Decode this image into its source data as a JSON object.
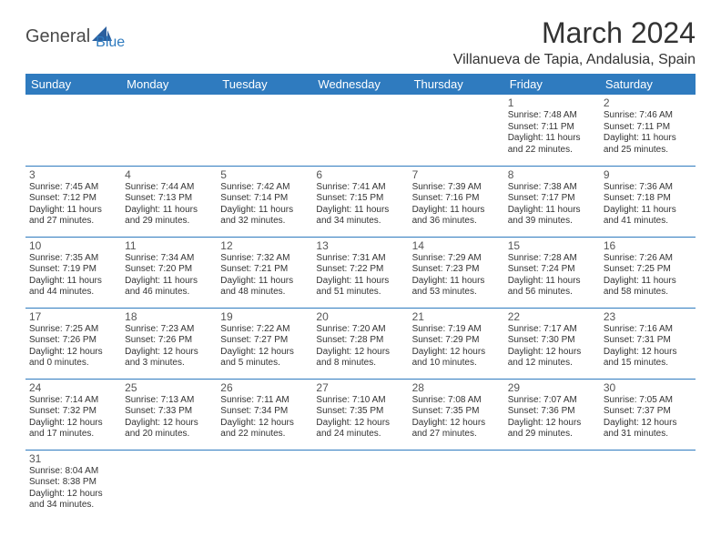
{
  "logo": {
    "word1": "General",
    "word2": "Blue",
    "word1_color": "#4a4a4a",
    "word2_color": "#2f7bbf",
    "sail_color": "#2b5f9e"
  },
  "header": {
    "title": "March 2024",
    "location": "Villanueva de Tapia, Andalusia, Spain"
  },
  "style": {
    "header_bg": "#2f7bbf",
    "header_fg": "#ffffff",
    "cell_border": "#2f7bbf",
    "text_color": "#333333",
    "daynum_color": "#555555",
    "font_family": "Arial",
    "title_fontsize": 32,
    "location_fontsize": 16,
    "dayhead_fontsize": 13,
    "daynum_fontsize": 12,
    "body_fontsize": 10
  },
  "days": [
    "Sunday",
    "Monday",
    "Tuesday",
    "Wednesday",
    "Thursday",
    "Friday",
    "Saturday"
  ],
  "weeks": [
    [
      null,
      null,
      null,
      null,
      null,
      {
        "n": "1",
        "sr": "Sunrise: 7:48 AM",
        "ss": "Sunset: 7:11 PM",
        "d1": "Daylight: 11 hours",
        "d2": "and 22 minutes."
      },
      {
        "n": "2",
        "sr": "Sunrise: 7:46 AM",
        "ss": "Sunset: 7:11 PM",
        "d1": "Daylight: 11 hours",
        "d2": "and 25 minutes."
      }
    ],
    [
      {
        "n": "3",
        "sr": "Sunrise: 7:45 AM",
        "ss": "Sunset: 7:12 PM",
        "d1": "Daylight: 11 hours",
        "d2": "and 27 minutes."
      },
      {
        "n": "4",
        "sr": "Sunrise: 7:44 AM",
        "ss": "Sunset: 7:13 PM",
        "d1": "Daylight: 11 hours",
        "d2": "and 29 minutes."
      },
      {
        "n": "5",
        "sr": "Sunrise: 7:42 AM",
        "ss": "Sunset: 7:14 PM",
        "d1": "Daylight: 11 hours",
        "d2": "and 32 minutes."
      },
      {
        "n": "6",
        "sr": "Sunrise: 7:41 AM",
        "ss": "Sunset: 7:15 PM",
        "d1": "Daylight: 11 hours",
        "d2": "and 34 minutes."
      },
      {
        "n": "7",
        "sr": "Sunrise: 7:39 AM",
        "ss": "Sunset: 7:16 PM",
        "d1": "Daylight: 11 hours",
        "d2": "and 36 minutes."
      },
      {
        "n": "8",
        "sr": "Sunrise: 7:38 AM",
        "ss": "Sunset: 7:17 PM",
        "d1": "Daylight: 11 hours",
        "d2": "and 39 minutes."
      },
      {
        "n": "9",
        "sr": "Sunrise: 7:36 AM",
        "ss": "Sunset: 7:18 PM",
        "d1": "Daylight: 11 hours",
        "d2": "and 41 minutes."
      }
    ],
    [
      {
        "n": "10",
        "sr": "Sunrise: 7:35 AM",
        "ss": "Sunset: 7:19 PM",
        "d1": "Daylight: 11 hours",
        "d2": "and 44 minutes."
      },
      {
        "n": "11",
        "sr": "Sunrise: 7:34 AM",
        "ss": "Sunset: 7:20 PM",
        "d1": "Daylight: 11 hours",
        "d2": "and 46 minutes."
      },
      {
        "n": "12",
        "sr": "Sunrise: 7:32 AM",
        "ss": "Sunset: 7:21 PM",
        "d1": "Daylight: 11 hours",
        "d2": "and 48 minutes."
      },
      {
        "n": "13",
        "sr": "Sunrise: 7:31 AM",
        "ss": "Sunset: 7:22 PM",
        "d1": "Daylight: 11 hours",
        "d2": "and 51 minutes."
      },
      {
        "n": "14",
        "sr": "Sunrise: 7:29 AM",
        "ss": "Sunset: 7:23 PM",
        "d1": "Daylight: 11 hours",
        "d2": "and 53 minutes."
      },
      {
        "n": "15",
        "sr": "Sunrise: 7:28 AM",
        "ss": "Sunset: 7:24 PM",
        "d1": "Daylight: 11 hours",
        "d2": "and 56 minutes."
      },
      {
        "n": "16",
        "sr": "Sunrise: 7:26 AM",
        "ss": "Sunset: 7:25 PM",
        "d1": "Daylight: 11 hours",
        "d2": "and 58 minutes."
      }
    ],
    [
      {
        "n": "17",
        "sr": "Sunrise: 7:25 AM",
        "ss": "Sunset: 7:26 PM",
        "d1": "Daylight: 12 hours",
        "d2": "and 0 minutes."
      },
      {
        "n": "18",
        "sr": "Sunrise: 7:23 AM",
        "ss": "Sunset: 7:26 PM",
        "d1": "Daylight: 12 hours",
        "d2": "and 3 minutes."
      },
      {
        "n": "19",
        "sr": "Sunrise: 7:22 AM",
        "ss": "Sunset: 7:27 PM",
        "d1": "Daylight: 12 hours",
        "d2": "and 5 minutes."
      },
      {
        "n": "20",
        "sr": "Sunrise: 7:20 AM",
        "ss": "Sunset: 7:28 PM",
        "d1": "Daylight: 12 hours",
        "d2": "and 8 minutes."
      },
      {
        "n": "21",
        "sr": "Sunrise: 7:19 AM",
        "ss": "Sunset: 7:29 PM",
        "d1": "Daylight: 12 hours",
        "d2": "and 10 minutes."
      },
      {
        "n": "22",
        "sr": "Sunrise: 7:17 AM",
        "ss": "Sunset: 7:30 PM",
        "d1": "Daylight: 12 hours",
        "d2": "and 12 minutes."
      },
      {
        "n": "23",
        "sr": "Sunrise: 7:16 AM",
        "ss": "Sunset: 7:31 PM",
        "d1": "Daylight: 12 hours",
        "d2": "and 15 minutes."
      }
    ],
    [
      {
        "n": "24",
        "sr": "Sunrise: 7:14 AM",
        "ss": "Sunset: 7:32 PM",
        "d1": "Daylight: 12 hours",
        "d2": "and 17 minutes."
      },
      {
        "n": "25",
        "sr": "Sunrise: 7:13 AM",
        "ss": "Sunset: 7:33 PM",
        "d1": "Daylight: 12 hours",
        "d2": "and 20 minutes."
      },
      {
        "n": "26",
        "sr": "Sunrise: 7:11 AM",
        "ss": "Sunset: 7:34 PM",
        "d1": "Daylight: 12 hours",
        "d2": "and 22 minutes."
      },
      {
        "n": "27",
        "sr": "Sunrise: 7:10 AM",
        "ss": "Sunset: 7:35 PM",
        "d1": "Daylight: 12 hours",
        "d2": "and 24 minutes."
      },
      {
        "n": "28",
        "sr": "Sunrise: 7:08 AM",
        "ss": "Sunset: 7:35 PM",
        "d1": "Daylight: 12 hours",
        "d2": "and 27 minutes."
      },
      {
        "n": "29",
        "sr": "Sunrise: 7:07 AM",
        "ss": "Sunset: 7:36 PM",
        "d1": "Daylight: 12 hours",
        "d2": "and 29 minutes."
      },
      {
        "n": "30",
        "sr": "Sunrise: 7:05 AM",
        "ss": "Sunset: 7:37 PM",
        "d1": "Daylight: 12 hours",
        "d2": "and 31 minutes."
      }
    ],
    [
      {
        "n": "31",
        "sr": "Sunrise: 8:04 AM",
        "ss": "Sunset: 8:38 PM",
        "d1": "Daylight: 12 hours",
        "d2": "and 34 minutes."
      },
      null,
      null,
      null,
      null,
      null,
      null
    ]
  ]
}
